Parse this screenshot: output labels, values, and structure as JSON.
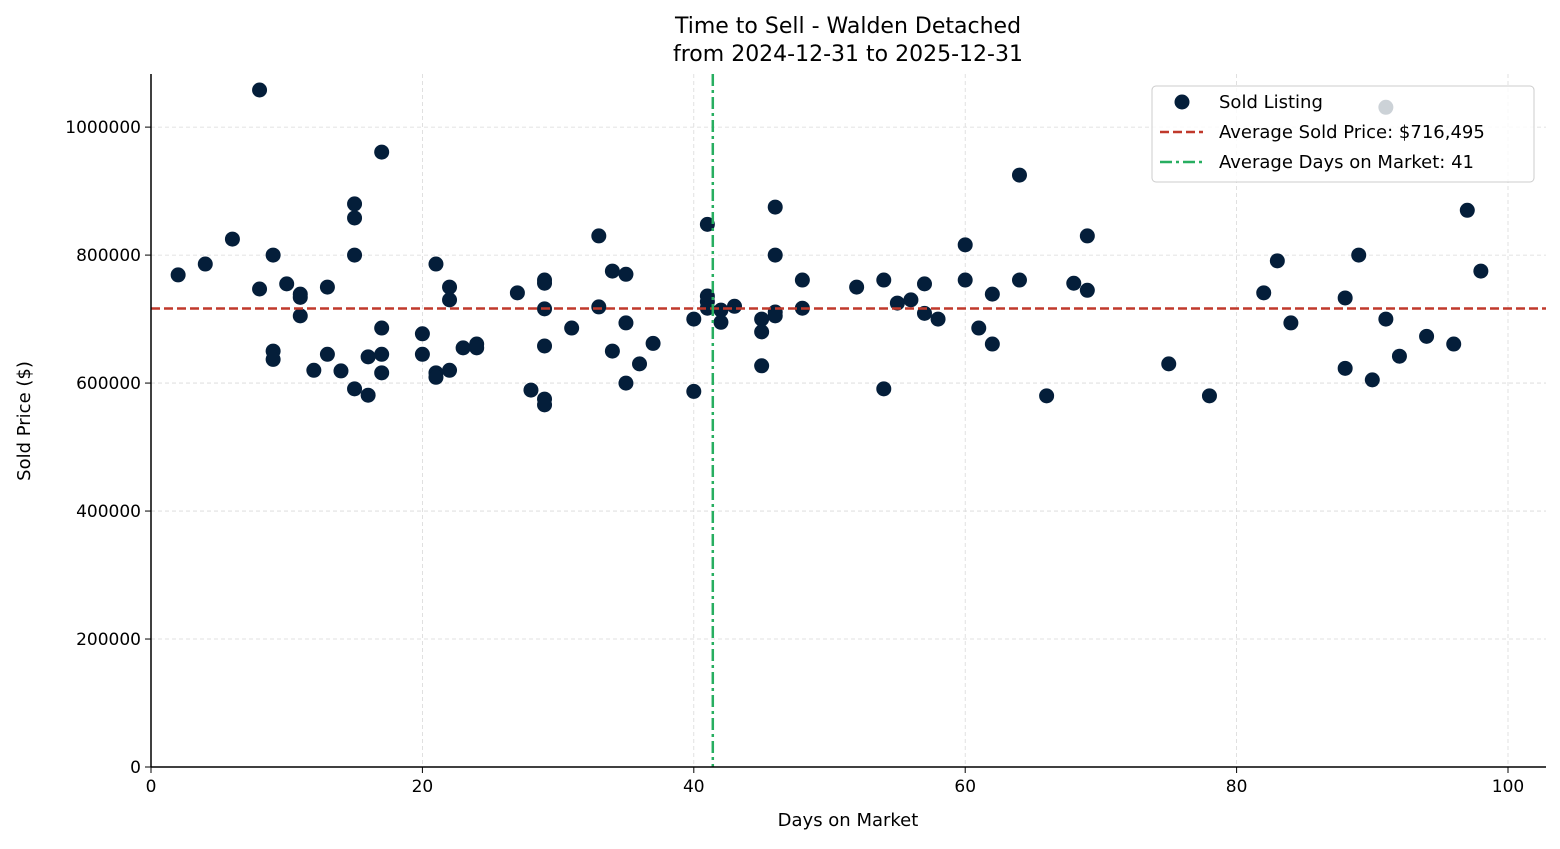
{
  "chart_data": {
    "type": "scatter",
    "title": "Time to Sell - Walden Detached",
    "subtitle": "from 2024-12-31 to 2025-12-31",
    "xlabel": "Days on Market",
    "ylabel": "Sold Price ($)",
    "xlim": [
      0,
      102.8
    ],
    "ylim": [
      0,
      1083000
    ],
    "xticks": [
      0,
      20,
      40,
      60,
      80,
      100
    ],
    "yticks": [
      0,
      200000,
      400000,
      600000,
      800000,
      1000000
    ],
    "grid": true,
    "legend_placement": "top-right",
    "colors": {
      "points": "#041e3a",
      "avg_price": "#c0392b",
      "avg_days": "#27ae60",
      "grid": "#d9d9d9"
    },
    "legend": [
      {
        "label": "Sold Listing",
        "kind": "marker"
      },
      {
        "label": "Average Sold Price: $716,495",
        "kind": "dashed"
      },
      {
        "label": "Average Days on Market: 41",
        "kind": "dashdot"
      }
    ],
    "reference_lines": {
      "avg_price": 716495,
      "avg_days": 41.4
    },
    "series": [
      {
        "name": "Sold Listing",
        "points": [
          [
            2,
            769000
          ],
          [
            4,
            786000
          ],
          [
            6,
            825000
          ],
          [
            8,
            1058000
          ],
          [
            8,
            747000
          ],
          [
            9,
            800000
          ],
          [
            9,
            650000
          ],
          [
            9,
            637000
          ],
          [
            10,
            755000
          ],
          [
            11,
            739000
          ],
          [
            11,
            734000
          ],
          [
            11,
            705000
          ],
          [
            12,
            620000
          ],
          [
            13,
            750000
          ],
          [
            13,
            645000
          ],
          [
            14,
            619000
          ],
          [
            15,
            880000
          ],
          [
            15,
            858000
          ],
          [
            15,
            800000
          ],
          [
            15,
            591000
          ],
          [
            16,
            641000
          ],
          [
            16,
            581000
          ],
          [
            17,
            961000
          ],
          [
            17,
            686000
          ],
          [
            17,
            645000
          ],
          [
            17,
            616000
          ],
          [
            20,
            677000
          ],
          [
            20,
            645000
          ],
          [
            21,
            786000
          ],
          [
            21,
            616000
          ],
          [
            21,
            609000
          ],
          [
            22,
            750000
          ],
          [
            22,
            730000
          ],
          [
            22,
            620000
          ],
          [
            23,
            655000
          ],
          [
            24,
            661000
          ],
          [
            24,
            655000
          ],
          [
            27,
            741000
          ],
          [
            28,
            589000
          ],
          [
            29,
            761000
          ],
          [
            29,
            756000
          ],
          [
            29,
            716000
          ],
          [
            29,
            658000
          ],
          [
            29,
            575000
          ],
          [
            29,
            566000
          ],
          [
            31,
            686000
          ],
          [
            33,
            830000
          ],
          [
            33,
            719000
          ],
          [
            34,
            775000
          ],
          [
            34,
            650000
          ],
          [
            35,
            770000
          ],
          [
            35,
            694000
          ],
          [
            35,
            600000
          ],
          [
            36,
            630000
          ],
          [
            37,
            662000
          ],
          [
            40,
            700000
          ],
          [
            40,
            587000
          ],
          [
            41,
            848000
          ],
          [
            41,
            736000
          ],
          [
            41,
            727000
          ],
          [
            41,
            717000
          ],
          [
            42,
            714000
          ],
          [
            42,
            695000
          ],
          [
            43,
            720000
          ],
          [
            45,
            700000
          ],
          [
            45,
            680000
          ],
          [
            45,
            627000
          ],
          [
            46,
            875000
          ],
          [
            46,
            800000
          ],
          [
            46,
            711000
          ],
          [
            46,
            705000
          ],
          [
            48,
            761000
          ],
          [
            48,
            717000
          ],
          [
            52,
            750000
          ],
          [
            54,
            761000
          ],
          [
            54,
            591000
          ],
          [
            55,
            725000
          ],
          [
            56,
            730000
          ],
          [
            57,
            755000
          ],
          [
            57,
            709000
          ],
          [
            58,
            700000
          ],
          [
            60,
            816000
          ],
          [
            60,
            761000
          ],
          [
            61,
            686000
          ],
          [
            62,
            739000
          ],
          [
            62,
            661000
          ],
          [
            64,
            925000
          ],
          [
            64,
            761000
          ],
          [
            66,
            580000
          ],
          [
            68,
            756000
          ],
          [
            69,
            830000
          ],
          [
            69,
            745000
          ],
          [
            75,
            630000
          ],
          [
            78,
            580000
          ],
          [
            82,
            741000
          ],
          [
            83,
            791000
          ],
          [
            84,
            694000
          ],
          [
            88,
            733000
          ],
          [
            88,
            623000
          ],
          [
            89,
            800000
          ],
          [
            90,
            605000
          ],
          [
            91,
            1031000
          ],
          [
            91,
            700000
          ],
          [
            92,
            642000
          ],
          [
            94,
            673000
          ],
          [
            96,
            661000
          ],
          [
            97,
            870000
          ],
          [
            98,
            775000
          ]
        ]
      }
    ]
  }
}
